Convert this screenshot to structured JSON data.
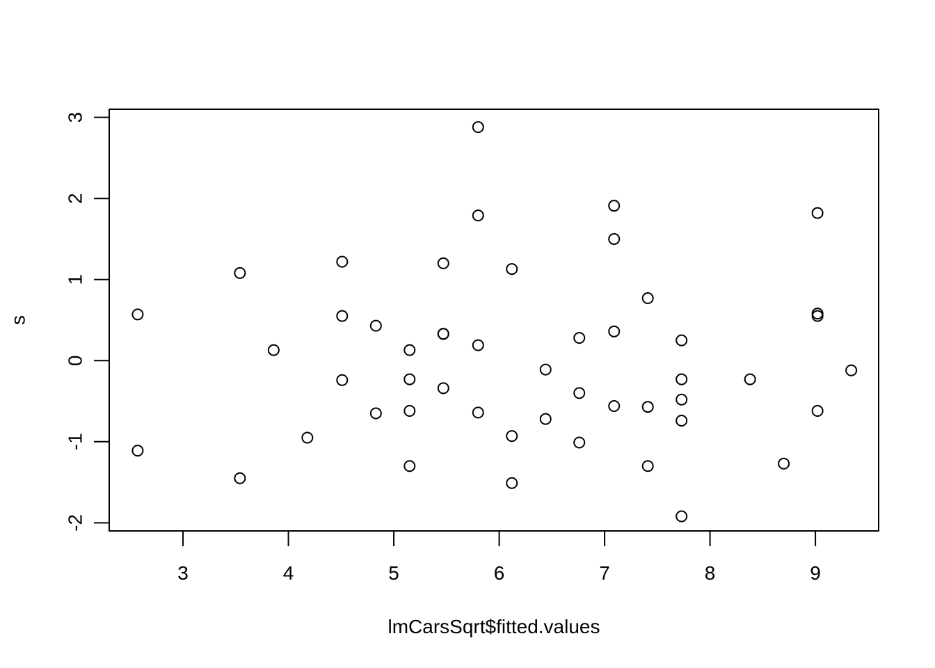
{
  "chart_data": {
    "type": "scatter",
    "title": "",
    "xlabel": "lmCarsSqrt$fitted.values",
    "ylabel": "s",
    "xlim": [
      2.3,
      9.6
    ],
    "ylim": [
      -2.1,
      3.1
    ],
    "x_ticks": [
      3,
      4,
      5,
      6,
      7,
      8,
      9
    ],
    "y_ticks": [
      -2,
      -1,
      0,
      1,
      2,
      3
    ],
    "marker": "open-circle",
    "color": "#000000",
    "grid": false,
    "legend": "none",
    "series": [
      {
        "points": [
          [
            2.57,
            0.57
          ],
          [
            2.57,
            -1.11
          ],
          [
            3.54,
            1.08
          ],
          [
            3.54,
            -1.45
          ],
          [
            3.86,
            0.13
          ],
          [
            4.18,
            -0.95
          ],
          [
            4.51,
            1.22
          ],
          [
            4.51,
            0.55
          ],
          [
            4.51,
            -0.24
          ],
          [
            4.83,
            0.43
          ],
          [
            4.83,
            -0.65
          ],
          [
            5.15,
            0.13
          ],
          [
            5.15,
            -0.23
          ],
          [
            5.15,
            -0.62
          ],
          [
            5.15,
            -1.3
          ],
          [
            5.47,
            1.2
          ],
          [
            5.47,
            0.33
          ],
          [
            5.47,
            0.33
          ],
          [
            5.47,
            -0.34
          ],
          [
            5.8,
            2.88
          ],
          [
            5.8,
            1.79
          ],
          [
            5.8,
            0.19
          ],
          [
            5.8,
            -0.64
          ],
          [
            6.12,
            1.13
          ],
          [
            6.12,
            -0.93
          ],
          [
            6.12,
            -1.51
          ],
          [
            6.44,
            -0.11
          ],
          [
            6.44,
            -0.72
          ],
          [
            6.76,
            0.28
          ],
          [
            6.76,
            -0.4
          ],
          [
            6.76,
            -1.01
          ],
          [
            7.09,
            1.91
          ],
          [
            7.09,
            1.5
          ],
          [
            7.09,
            0.36
          ],
          [
            7.09,
            -0.56
          ],
          [
            7.41,
            0.77
          ],
          [
            7.41,
            -0.57
          ],
          [
            7.41,
            -1.3
          ],
          [
            7.73,
            0.25
          ],
          [
            7.73,
            -0.23
          ],
          [
            7.73,
            -0.48
          ],
          [
            7.73,
            -0.74
          ],
          [
            7.73,
            -1.92
          ],
          [
            8.38,
            -0.23
          ],
          [
            8.7,
            -1.27
          ],
          [
            9.02,
            1.82
          ],
          [
            9.02,
            0.58
          ],
          [
            9.02,
            0.55
          ],
          [
            9.02,
            -0.62
          ],
          [
            9.34,
            -0.12
          ]
        ]
      }
    ]
  }
}
